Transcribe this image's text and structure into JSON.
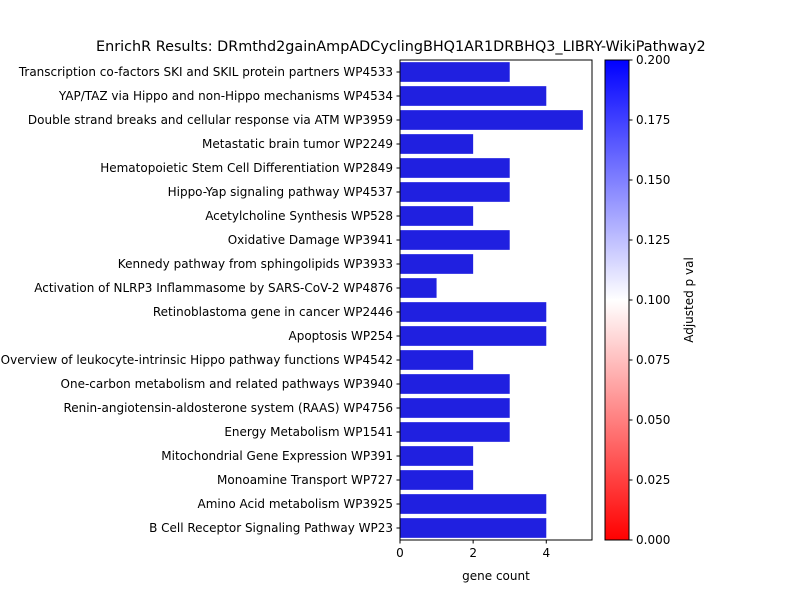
{
  "chart_data": {
    "type": "bar",
    "orientation": "horizontal",
    "title": "EnrichR Results: DRmthd2gainAmpADCyclingBHQ1AR1DRBHQ3_LIBRY-WikiPathway2",
    "xlabel": "gene count",
    "ylabel": "",
    "xlim": [
      0,
      5.25
    ],
    "xticks": [
      0,
      2,
      4
    ],
    "bar_color": "#2020e0",
    "categories": [
      "Transcription co-factors SKI and SKIL protein partners WP4533",
      "YAP/TAZ via Hippo and non-Hippo mechanisms WP4534",
      "Double strand breaks and cellular response via ATM WP3959",
      "Metastatic brain tumor WP2249",
      "Hematopoietic Stem Cell Differentiation WP2849",
      "Hippo-Yap signaling pathway WP4537",
      "Acetylcholine Synthesis WP528",
      "Oxidative Damage WP3941",
      "Kennedy pathway from sphingolipids WP3933",
      "Activation of NLRP3 Inflammasome by SARS-CoV-2 WP4876",
      "Retinoblastoma gene in cancer WP2446",
      "Apoptosis WP254",
      "Overview of leukocyte-intrinsic Hippo pathway functions WP4542",
      "One-carbon metabolism and related pathways WP3940",
      "Renin-angiotensin-aldosterone system (RAAS) WP4756",
      "Energy Metabolism WP1541",
      "Mitochondrial Gene Expression WP391",
      "Monoamine Transport WP727",
      "Amino Acid metabolism WP3925",
      "B Cell Receptor Signaling Pathway WP23"
    ],
    "values": [
      3,
      4,
      5,
      2,
      3,
      3,
      2,
      3,
      2,
      1,
      4,
      4,
      2,
      3,
      3,
      3,
      2,
      2,
      4,
      4
    ],
    "colorbar": {
      "label": "Adjusted p val",
      "range": [
        0,
        0.2
      ],
      "ticks": [
        "0.000",
        "0.025",
        "0.050",
        "0.075",
        "0.100",
        "0.125",
        "0.150",
        "0.175",
        "0.200"
      ],
      "colormap": [
        "#ff0000",
        "#ffffff",
        "#0000ff"
      ]
    }
  }
}
